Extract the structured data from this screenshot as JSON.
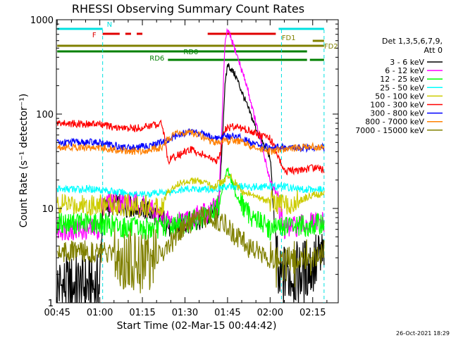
{
  "chart_data": {
    "type": "line",
    "title": "RHESSI Observing Summary Count Rates",
    "xlabel": "Start Time (02-Mar-15 00:44:42)",
    "ylabel": "Count Rate (s⁻¹ detector⁻¹)",
    "yscale": "log",
    "ylim": [
      1,
      1000
    ],
    "xlim": [
      "00:44:42",
      "02:24:00"
    ],
    "x_ticks": [
      "00:45",
      "01:00",
      "01:15",
      "01:30",
      "01:45",
      "02:00",
      "02:15"
    ],
    "y_ticks": [
      "1",
      "10",
      "100",
      "1000"
    ],
    "legend_title": [
      "Det 1,3,5,6,7,9,",
      "Att 0"
    ],
    "legend_position": "right",
    "timestamp": "26-Oct-2021 18:29",
    "flags": [
      {
        "label": "N",
        "color": "#00e0e0",
        "segments": [
          [
            "00:45",
            "01:01"
          ],
          [
            "02:03",
            "02:19"
          ]
        ]
      },
      {
        "label": "F",
        "color": "#e00000",
        "segments": [
          [
            "01:01",
            "01:07"
          ],
          [
            "01:09",
            "01:11"
          ],
          [
            "01:13",
            "01:15"
          ],
          [
            "01:38",
            "02:02"
          ]
        ]
      },
      {
        "label": "FD1",
        "color": "#808000",
        "segments": [
          [
            "02:15",
            "02:19"
          ]
        ]
      },
      {
        "label": "FD2",
        "color": "#808000",
        "segments": [
          [
            "00:45",
            "02:19"
          ]
        ]
      },
      {
        "label": "RD0",
        "color": "#008000",
        "segments": [
          [
            "00:45",
            "02:13"
          ]
        ]
      },
      {
        "label": "RD6",
        "color": "#008000",
        "segments": [
          [
            "01:24",
            "02:13"
          ],
          [
            "02:14",
            "02:19"
          ]
        ]
      }
    ],
    "vlines": [
      "01:01",
      "02:04",
      "02:19"
    ],
    "series": [
      {
        "name": "3 - 6 keV",
        "color": "#000000",
        "x": [
          "00:45",
          "01:00",
          "01:01",
          "01:05",
          "01:15",
          "01:22",
          "01:25",
          "01:30",
          "01:38",
          "01:42",
          "01:44",
          "01:45",
          "01:48",
          "01:52",
          "01:56",
          "02:00",
          "02:03",
          "02:05",
          "02:10",
          "02:15",
          "02:19"
        ],
        "y": [
          1.5,
          1.5,
          10,
          11,
          10,
          8,
          6,
          7,
          8,
          10,
          180,
          340,
          250,
          120,
          60,
          35,
          1.5,
          2,
          2,
          2.5,
          3
        ]
      },
      {
        "name": "6 - 12 keV",
        "color": "#ff00ff",
        "x": [
          "00:45",
          "01:00",
          "01:01",
          "01:05",
          "01:15",
          "01:22",
          "01:25",
          "01:30",
          "01:38",
          "01:42",
          "01:44",
          "01:45",
          "01:48",
          "01:52",
          "01:56",
          "02:00",
          "02:02",
          "02:05",
          "02:10",
          "02:15",
          "02:19"
        ],
        "y": [
          6,
          6,
          11,
          12,
          11,
          8,
          7,
          7.5,
          9,
          12,
          500,
          790,
          450,
          190,
          60,
          20,
          15,
          6,
          6.5,
          7,
          7
        ]
      },
      {
        "name": "12 - 25 keV",
        "color": "#00ff00",
        "x": [
          "00:45",
          "01:00",
          "01:05",
          "01:15",
          "01:24",
          "01:30",
          "01:38",
          "01:42",
          "01:44",
          "01:45",
          "01:48",
          "01:52",
          "01:56",
          "02:00",
          "02:05",
          "02:10",
          "02:15",
          "02:19"
        ],
        "y": [
          7,
          7,
          6.5,
          6,
          6.5,
          7,
          8,
          11,
          22,
          26,
          14,
          9,
          7.5,
          6,
          6.5,
          6.5,
          6.5,
          7
        ]
      },
      {
        "name": "25 - 50 keV",
        "color": "#00ffff",
        "x": [
          "00:45",
          "01:00",
          "01:05",
          "01:15",
          "01:24",
          "01:30",
          "01:38",
          "01:42",
          "01:45",
          "01:48",
          "01:52",
          "01:56",
          "02:00",
          "02:05",
          "02:10",
          "02:15",
          "02:19"
        ],
        "y": [
          16,
          16,
          15,
          14,
          15,
          16,
          16,
          16.5,
          17,
          17,
          17,
          17,
          17,
          17,
          16,
          16,
          16
        ]
      },
      {
        "name": "50 - 100 keV",
        "color": "#cccc00",
        "x": [
          "00:45",
          "01:00",
          "01:05",
          "01:15",
          "01:22",
          "01:24",
          "01:27",
          "01:32",
          "01:36",
          "01:40",
          "01:44",
          "01:46",
          "01:50",
          "01:56",
          "02:00",
          "02:05",
          "02:10",
          "02:15",
          "02:19"
        ],
        "y": [
          11,
          11,
          11,
          10.5,
          11,
          15,
          18,
          20,
          19,
          17,
          20,
          22,
          15,
          13,
          12,
          11,
          12,
          14,
          14
        ]
      },
      {
        "name": "100 - 300 keV",
        "color": "#ff0000",
        "x": [
          "00:45",
          "01:00",
          "01:05",
          "01:10",
          "01:15",
          "01:22",
          "01:24",
          "01:27",
          "01:32",
          "01:36",
          "01:40",
          "01:42",
          "01:44",
          "01:48",
          "01:52",
          "01:56",
          "02:00",
          "02:05",
          "02:10",
          "02:15",
          "02:19"
        ],
        "y": [
          80,
          78,
          72,
          70,
          72,
          80,
          32,
          36,
          42,
          38,
          32,
          32,
          70,
          75,
          68,
          60,
          55,
          25,
          25,
          27,
          26
        ]
      },
      {
        "name": "300 - 800 keV",
        "color": "#0000ff",
        "x": [
          "00:45",
          "01:00",
          "01:05",
          "01:10",
          "01:15",
          "01:22",
          "01:24",
          "01:27",
          "01:32",
          "01:36",
          "01:40",
          "01:44",
          "01:48",
          "01:52",
          "01:56",
          "02:00",
          "02:05",
          "02:10",
          "02:15",
          "02:19"
        ],
        "y": [
          50,
          50,
          46,
          44,
          45,
          50,
          52,
          60,
          66,
          62,
          55,
          58,
          58,
          52,
          45,
          44,
          44,
          44,
          44,
          44
        ]
      },
      {
        "name": "800 - 7000 keV",
        "color": "#ff8000",
        "x": [
          "00:45",
          "01:00",
          "01:05",
          "01:10",
          "01:15",
          "01:22",
          "01:24",
          "01:27",
          "01:32",
          "01:36",
          "01:40",
          "01:44",
          "01:48",
          "01:52",
          "01:56",
          "02:00",
          "02:05",
          "02:10",
          "02:15",
          "02:19"
        ],
        "y": [
          45,
          44,
          42,
          40,
          41,
          44,
          55,
          62,
          64,
          58,
          50,
          52,
          52,
          48,
          42,
          40,
          42,
          44,
          45,
          45
        ]
      },
      {
        "name": "7000 - 15000 keV",
        "color": "#808000",
        "x": [
          "00:45",
          "01:00",
          "01:05",
          "01:15",
          "01:20",
          "01:24",
          "01:27",
          "01:32",
          "01:36",
          "01:40",
          "01:44",
          "01:48",
          "01:52",
          "01:56",
          "02:00",
          "02:05",
          "02:10",
          "02:15",
          "02:19"
        ],
        "y": [
          3.5,
          3.5,
          3,
          2.8,
          3,
          4,
          5,
          7,
          8,
          8,
          7,
          5,
          4,
          3.5,
          3,
          3,
          3,
          3,
          3.5
        ]
      }
    ]
  }
}
